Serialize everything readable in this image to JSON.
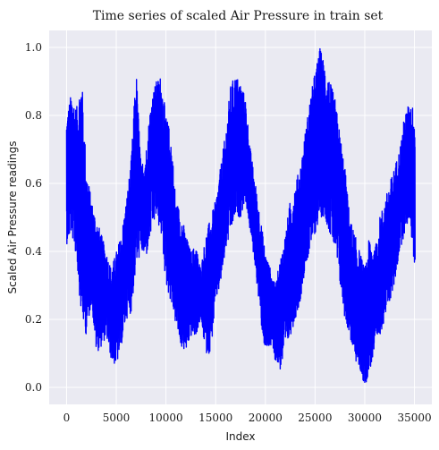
{
  "chart_data": {
    "type": "line",
    "title": "Time series of scaled Air Pressure in train set",
    "xlabel": "Index",
    "ylabel": "Scaled Air Pressure readings",
    "xlim": [
      -1750,
      36750
    ],
    "ylim": [
      -0.05,
      1.05
    ],
    "x_ticks": [
      0,
      5000,
      10000,
      15000,
      20000,
      25000,
      30000,
      35000
    ],
    "x_tick_labels": [
      "0",
      "5000",
      "10000",
      "15000",
      "20000",
      "25000",
      "30000",
      "35000"
    ],
    "y_ticks": [
      0.0,
      0.2,
      0.4,
      0.6,
      0.8,
      1.0
    ],
    "y_tick_labels": [
      "0.0",
      "0.2",
      "0.4",
      "0.6",
      "0.8",
      "1.0"
    ],
    "grid": true,
    "background": "#eaeaf2",
    "line_color": "#0000ff",
    "n_points": 35064,
    "envelope": {
      "x": [
        0,
        500,
        1000,
        1500,
        2000,
        2500,
        3000,
        3500,
        4000,
        4500,
        5000,
        5500,
        6000,
        6500,
        7000,
        7500,
        8000,
        8500,
        9000,
        9500,
        10000,
        10500,
        11000,
        11500,
        12000,
        12500,
        13000,
        13500,
        14000,
        14500,
        15000,
        15500,
        16000,
        16500,
        17000,
        17500,
        18000,
        18500,
        19000,
        19500,
        20000,
        20500,
        21000,
        21500,
        22000,
        22500,
        23000,
        23500,
        24000,
        24500,
        25000,
        25500,
        26000,
        26500,
        27000,
        27500,
        28000,
        28500,
        29000,
        29500,
        30000,
        30500,
        31000,
        31500,
        32000,
        32500,
        33000,
        33500,
        34000,
        34500,
        35000
      ],
      "min": [
        0.42,
        0.45,
        0.38,
        0.2,
        0.15,
        0.25,
        0.1,
        0.12,
        0.15,
        0.08,
        0.06,
        0.12,
        0.2,
        0.22,
        0.35,
        0.4,
        0.38,
        0.45,
        0.5,
        0.45,
        0.3,
        0.25,
        0.18,
        0.12,
        0.1,
        0.15,
        0.15,
        0.2,
        0.1,
        0.1,
        0.25,
        0.3,
        0.4,
        0.45,
        0.5,
        0.5,
        0.55,
        0.45,
        0.35,
        0.2,
        0.1,
        0.12,
        0.08,
        0.05,
        0.1,
        0.15,
        0.2,
        0.25,
        0.35,
        0.4,
        0.45,
        0.5,
        0.5,
        0.45,
        0.4,
        0.3,
        0.2,
        0.15,
        0.08,
        0.05,
        0.0,
        0.05,
        0.1,
        0.15,
        0.2,
        0.25,
        0.3,
        0.4,
        0.45,
        0.5,
        0.35
      ],
      "max": [
        0.8,
        0.87,
        0.82,
        0.93,
        0.65,
        0.55,
        0.5,
        0.45,
        0.4,
        0.35,
        0.4,
        0.45,
        0.55,
        0.67,
        0.94,
        0.65,
        0.7,
        0.85,
        0.9,
        0.92,
        0.8,
        0.75,
        0.55,
        0.52,
        0.45,
        0.4,
        0.42,
        0.35,
        0.45,
        0.5,
        0.55,
        0.65,
        0.75,
        0.89,
        0.92,
        0.9,
        0.85,
        0.7,
        0.6,
        0.5,
        0.4,
        0.35,
        0.3,
        0.38,
        0.45,
        0.55,
        0.6,
        0.65,
        0.75,
        0.85,
        0.93,
        1.0,
        0.95,
        0.9,
        0.85,
        0.75,
        0.65,
        0.5,
        0.45,
        0.4,
        0.35,
        0.45,
        0.4,
        0.5,
        0.55,
        0.6,
        0.65,
        0.7,
        0.8,
        0.84,
        0.82
      ]
    }
  }
}
